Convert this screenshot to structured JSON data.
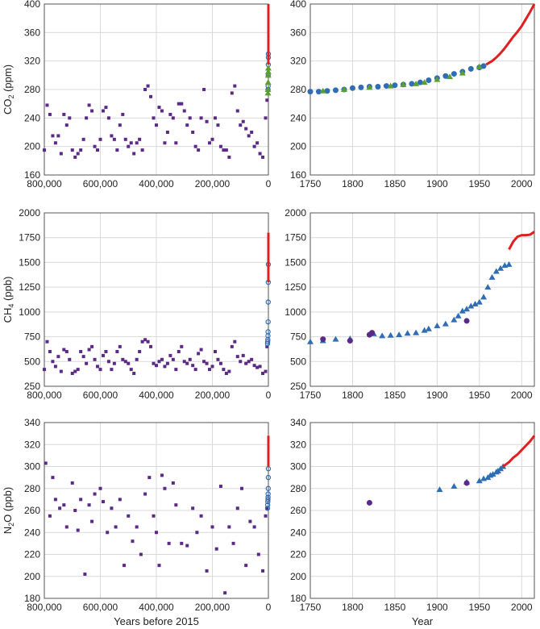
{
  "chart_data": [
    {
      "id": "co2-long",
      "type": "scatter",
      "ylabel": "CO2 (ppm)",
      "xlabel": "",
      "xlim": [
        800000,
        0
      ],
      "ylim": [
        160,
        400
      ],
      "xticks": [
        "800,000",
        "600,000",
        "400,000",
        "200,000",
        "0"
      ],
      "yticks": [
        "160",
        "200",
        "240",
        "280",
        "320",
        "360",
        "400"
      ],
      "grid": true,
      "series": [
        {
          "marker": "square",
          "color": "#5b2a86",
          "x": [
            800000,
            790000,
            780000,
            770000,
            760000,
            750000,
            740000,
            730000,
            720000,
            710000,
            700000,
            690000,
            680000,
            670000,
            660000,
            650000,
            640000,
            630000,
            620000,
            610000,
            600000,
            590000,
            580000,
            570000,
            560000,
            550000,
            540000,
            530000,
            520000,
            510000,
            500000,
            490000,
            480000,
            470000,
            460000,
            450000,
            440000,
            430000,
            420000,
            410000,
            400000,
            390000,
            380000,
            370000,
            360000,
            350000,
            340000,
            330000,
            320000,
            310000,
            300000,
            290000,
            280000,
            270000,
            260000,
            250000,
            240000,
            230000,
            220000,
            210000,
            200000,
            190000,
            180000,
            170000,
            160000,
            150000,
            140000,
            130000,
            120000,
            110000,
            100000,
            90000,
            80000,
            70000,
            60000,
            50000,
            40000,
            30000,
            20000,
            10000,
            5000,
            2000
          ],
          "y": [
            195,
            258,
            245,
            215,
            205,
            215,
            190,
            245,
            230,
            240,
            195,
            185,
            190,
            195,
            210,
            240,
            258,
            250,
            200,
            195,
            210,
            250,
            255,
            240,
            215,
            210,
            195,
            230,
            245,
            210,
            200,
            205,
            190,
            205,
            210,
            195,
            280,
            285,
            270,
            240,
            230,
            255,
            250,
            205,
            220,
            245,
            240,
            205,
            260,
            260,
            250,
            230,
            240,
            220,
            200,
            195,
            240,
            280,
            235,
            205,
            210,
            240,
            230,
            200,
            195,
            195,
            185,
            275,
            285,
            250,
            230,
            235,
            225,
            215,
            220,
            200,
            205,
            190,
            185,
            240,
            265,
            280
          ]
        },
        {
          "marker": "circle-open",
          "color": "#2f6db5",
          "x": [
            1200,
            900,
            600,
            300,
            100,
            50
          ],
          "y": [
            280,
            285,
            300,
            315,
            325,
            330
          ]
        },
        {
          "marker": "triangle",
          "color": "#5aa02c",
          "x": [
            1500,
            1200,
            900,
            600,
            400,
            200
          ],
          "y": [
            275,
            280,
            290,
            300,
            305,
            310
          ]
        },
        {
          "marker": "line",
          "color": "#e02020",
          "x": [
            60,
            40,
            20,
            0
          ],
          "y": [
            315,
            340,
            370,
            400
          ]
        }
      ]
    },
    {
      "id": "co2-recent",
      "type": "scatter",
      "ylabel": "",
      "xlabel": "",
      "xlim": [
        1750,
        2015
      ],
      "ylim": [
        160,
        400
      ],
      "xticks": [
        "1750",
        "1800",
        "1850",
        "1900",
        "1950",
        "2000"
      ],
      "yticks": [
        "160",
        "200",
        "240",
        "280",
        "320",
        "360",
        "400"
      ],
      "grid": true,
      "series": [
        {
          "marker": "circle",
          "color": "#2f6db5",
          "x": [
            1750,
            1760,
            1770,
            1780,
            1790,
            1800,
            1810,
            1820,
            1830,
            1840,
            1850,
            1860,
            1870,
            1880,
            1890,
            1900,
            1910,
            1920,
            1930,
            1940,
            1950,
            1955
          ],
          "y": [
            277,
            277,
            278,
            279,
            280,
            282,
            283,
            284,
            284,
            285,
            286,
            287,
            288,
            290,
            293,
            296,
            299,
            302,
            305,
            309,
            311,
            313
          ]
        },
        {
          "marker": "triangle",
          "color": "#5aa02c",
          "x": [
            1765,
            1790,
            1820,
            1845,
            1860,
            1875,
            1885,
            1900,
            1915,
            1930,
            1950
          ],
          "y": [
            278,
            280,
            283,
            285,
            287,
            288,
            290,
            294,
            298,
            303,
            312
          ]
        },
        {
          "marker": "line",
          "color": "#e02020",
          "x": [
            1958,
            1965,
            1970,
            1975,
            1980,
            1985,
            1990,
            1995,
            2000,
            2005,
            2010,
            2015
          ],
          "y": [
            315,
            320,
            325,
            331,
            338,
            346,
            354,
            361,
            369,
            379,
            389,
            400
          ]
        }
      ]
    },
    {
      "id": "ch4-long",
      "type": "scatter",
      "ylabel": "CH4 (ppb)",
      "xlabel": "",
      "xlim": [
        800000,
        0
      ],
      "ylim": [
        250,
        2000
      ],
      "xticks": [
        "800,000",
        "600,000",
        "400,000",
        "200,000",
        "0"
      ],
      "yticks": [
        "250",
        "500",
        "750",
        "1000",
        "1250",
        "1500",
        "1750",
        "2000"
      ],
      "grid": true,
      "series": [
        {
          "marker": "square",
          "color": "#5b2a86",
          "x": [
            800000,
            790000,
            780000,
            770000,
            760000,
            750000,
            740000,
            730000,
            720000,
            710000,
            700000,
            690000,
            680000,
            670000,
            660000,
            650000,
            640000,
            630000,
            620000,
            610000,
            600000,
            590000,
            580000,
            570000,
            560000,
            550000,
            540000,
            530000,
            520000,
            510000,
            500000,
            490000,
            480000,
            470000,
            460000,
            450000,
            440000,
            430000,
            420000,
            410000,
            400000,
            390000,
            380000,
            370000,
            360000,
            350000,
            340000,
            330000,
            320000,
            310000,
            300000,
            290000,
            280000,
            270000,
            260000,
            250000,
            240000,
            230000,
            220000,
            210000,
            200000,
            190000,
            180000,
            170000,
            160000,
            150000,
            140000,
            130000,
            120000,
            110000,
            100000,
            90000,
            80000,
            70000,
            60000,
            50000,
            40000,
            30000,
            20000,
            10000,
            5000
          ],
          "y": [
            420,
            700,
            600,
            500,
            450,
            550,
            400,
            620,
            600,
            520,
            380,
            400,
            420,
            600,
            550,
            480,
            620,
            650,
            520,
            450,
            420,
            560,
            600,
            500,
            420,
            480,
            600,
            650,
            520,
            500,
            480,
            420,
            380,
            520,
            600,
            700,
            720,
            700,
            650,
            480,
            460,
            500,
            520,
            450,
            480,
            560,
            520,
            420,
            600,
            650,
            500,
            480,
            520,
            460,
            420,
            580,
            620,
            500,
            480,
            420,
            450,
            600,
            520,
            480,
            420,
            380,
            400,
            650,
            700,
            550,
            500,
            560,
            480,
            500,
            520,
            460,
            440,
            450,
            380,
            400,
            650
          ]
        },
        {
          "marker": "circle-open",
          "color": "#2f6db5",
          "x": [
            3000,
            2500,
            2000,
            1500,
            1200,
            900,
            600,
            300,
            100
          ],
          "y": [
            680,
            700,
            720,
            760,
            800,
            900,
            1100,
            1300,
            1480
          ]
        },
        {
          "marker": "line",
          "color": "#e02020",
          "x": [
            60,
            40,
            20,
            0
          ],
          "y": [
            1300,
            1500,
            1700,
            1800
          ]
        }
      ]
    },
    {
      "id": "ch4-recent",
      "type": "scatter",
      "ylabel": "",
      "xlabel": "",
      "xlim": [
        1750,
        2015
      ],
      "ylim": [
        250,
        2000
      ],
      "xticks": [
        "1750",
        "1800",
        "1850",
        "1900",
        "1950",
        "2000"
      ],
      "yticks": [
        "250",
        "500",
        "750",
        "1000",
        "1250",
        "1500",
        "1750",
        "2000"
      ],
      "grid": true,
      "series": [
        {
          "marker": "triangle",
          "color": "#2f6db5",
          "x": [
            1750,
            1765,
            1780,
            1797,
            1825,
            1835,
            1845,
            1855,
            1865,
            1875,
            1885,
            1890,
            1900,
            1910,
            1920,
            1925,
            1930,
            1935,
            1940,
            1945,
            1950,
            1955,
            1960,
            1965,
            1970,
            1975,
            1980,
            1985
          ],
          "y": [
            700,
            710,
            725,
            730,
            780,
            760,
            765,
            770,
            785,
            790,
            815,
            830,
            860,
            880,
            920,
            960,
            1010,
            1030,
            1060,
            1080,
            1100,
            1150,
            1250,
            1350,
            1410,
            1440,
            1470,
            1480
          ]
        },
        {
          "marker": "circle",
          "color": "#5b2a86",
          "x": [
            1765,
            1797,
            1820,
            1823,
            1935
          ],
          "y": [
            725,
            710,
            770,
            790,
            910
          ]
        },
        {
          "marker": "line",
          "color": "#e02020",
          "x": [
            1985,
            1990,
            1995,
            2000,
            2005,
            2010,
            2015
          ],
          "y": [
            1630,
            1710,
            1760,
            1775,
            1775,
            1780,
            1810
          ]
        }
      ]
    },
    {
      "id": "n2o-long",
      "type": "scatter",
      "ylabel": "N2O (ppb)",
      "xlabel": "Years before 2015",
      "xlim": [
        800000,
        0
      ],
      "ylim": [
        180,
        340
      ],
      "xticks": [
        "800,000",
        "600,000",
        "400,000",
        "200,000",
        "0"
      ],
      "yticks": [
        "180",
        "200",
        "220",
        "240",
        "260",
        "280",
        "300",
        "320",
        "340"
      ],
      "grid": true,
      "series": [
        {
          "marker": "square",
          "color": "#5b2a86",
          "x": [
            795000,
            780000,
            770000,
            760000,
            745000,
            730000,
            720000,
            700000,
            690000,
            680000,
            670000,
            655000,
            640000,
            630000,
            620000,
            600000,
            590000,
            575000,
            560000,
            545000,
            530000,
            515000,
            500000,
            485000,
            470000,
            455000,
            440000,
            425000,
            410000,
            400000,
            390000,
            380000,
            370000,
            355000,
            340000,
            330000,
            310000,
            290000,
            270000,
            255000,
            240000,
            220000,
            200000,
            185000,
            170000,
            155000,
            140000,
            125000,
            110000,
            95000,
            80000,
            65000,
            50000,
            35000,
            20000,
            10000,
            5000
          ],
          "y": [
            303,
            255,
            290,
            270,
            262,
            265,
            245,
            285,
            260,
            242,
            270,
            202,
            265,
            250,
            275,
            280,
            268,
            240,
            262,
            245,
            270,
            210,
            255,
            232,
            245,
            220,
            275,
            290,
            255,
            240,
            210,
            292,
            280,
            230,
            285,
            265,
            230,
            228,
            262,
            240,
            255,
            205,
            245,
            225,
            282,
            185,
            245,
            230,
            262,
            280,
            210,
            250,
            245,
            220,
            205,
            255,
            262
          ]
        },
        {
          "marker": "circle-open",
          "color": "#2f6db5",
          "x": [
            3000,
            2500,
            2000,
            1500,
            1200,
            900,
            600,
            300,
            100
          ],
          "y": [
            262,
            265,
            268,
            270,
            272,
            275,
            280,
            290,
            298
          ]
        },
        {
          "marker": "line",
          "color": "#e02020",
          "x": [
            60,
            40,
            20,
            0
          ],
          "y": [
            300,
            310,
            318,
            328
          ]
        }
      ]
    },
    {
      "id": "n2o-recent",
      "type": "scatter",
      "ylabel": "",
      "xlabel": "Year",
      "xlim": [
        1750,
        2015
      ],
      "ylim": [
        180,
        340
      ],
      "xticks": [
        "1750",
        "1800",
        "1850",
        "1900",
        "1950",
        "2000"
      ],
      "yticks": [
        "180",
        "200",
        "220",
        "240",
        "260",
        "280",
        "300",
        "320",
        "340"
      ],
      "grid": true,
      "series": [
        {
          "marker": "triangle",
          "color": "#2f6db5",
          "x": [
            1903,
            1920,
            1935,
            1950,
            1955,
            1960,
            1963,
            1966,
            1970,
            1972,
            1975,
            1978
          ],
          "y": [
            279,
            282,
            286,
            287,
            289,
            290,
            292,
            293,
            295,
            296,
            298,
            300
          ]
        },
        {
          "marker": "circle",
          "color": "#5b2a86",
          "x": [
            1820,
            1935
          ],
          "y": [
            267,
            285
          ]
        },
        {
          "marker": "line",
          "color": "#e02020",
          "x": [
            1978,
            1985,
            1990,
            1995,
            2000,
            2005,
            2010,
            2015
          ],
          "y": [
            300,
            304,
            308,
            311,
            315,
            319,
            323,
            328
          ]
        }
      ]
    }
  ]
}
